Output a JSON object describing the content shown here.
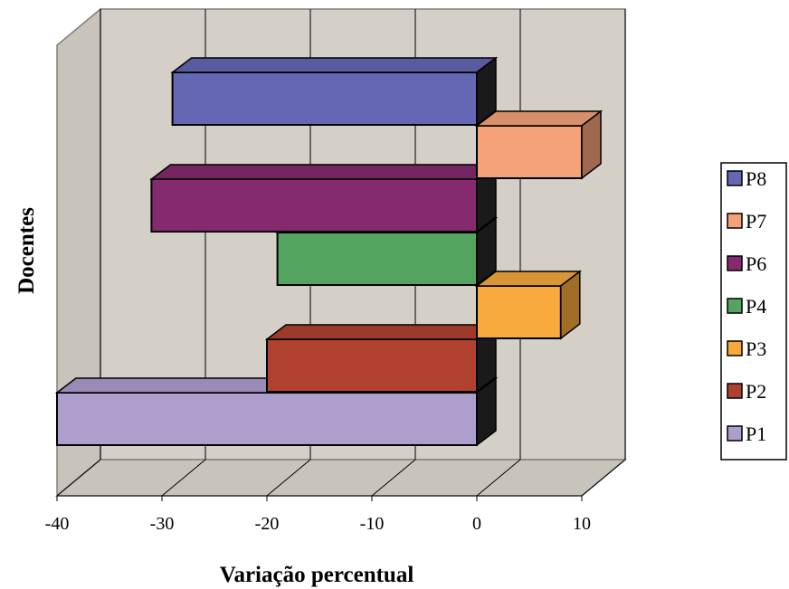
{
  "chart_data": {
    "type": "bar",
    "orientation": "horizontal",
    "three_d": true,
    "xlabel": "Variação percentual",
    "ylabel": "Docentes",
    "xlim": [
      -40,
      10
    ],
    "xticks": [
      -40,
      -30,
      -20,
      -10,
      0,
      10
    ],
    "grid": true,
    "legend_position": "right",
    "series": [
      {
        "name": "P8",
        "value": -29,
        "color": "#6467B4"
      },
      {
        "name": "P7",
        "value": 10,
        "color": "#F5A27A"
      },
      {
        "name": "P6",
        "value": -31,
        "color": "#852A6E"
      },
      {
        "name": "P4",
        "value": -19,
        "color": "#52A45E"
      },
      {
        "name": "P3",
        "value": 8,
        "color": "#F7A93C"
      },
      {
        "name": "P2",
        "value": -20,
        "color": "#B1412F"
      },
      {
        "name": "P1",
        "value": -40,
        "color": "#AD9ECE"
      }
    ]
  }
}
